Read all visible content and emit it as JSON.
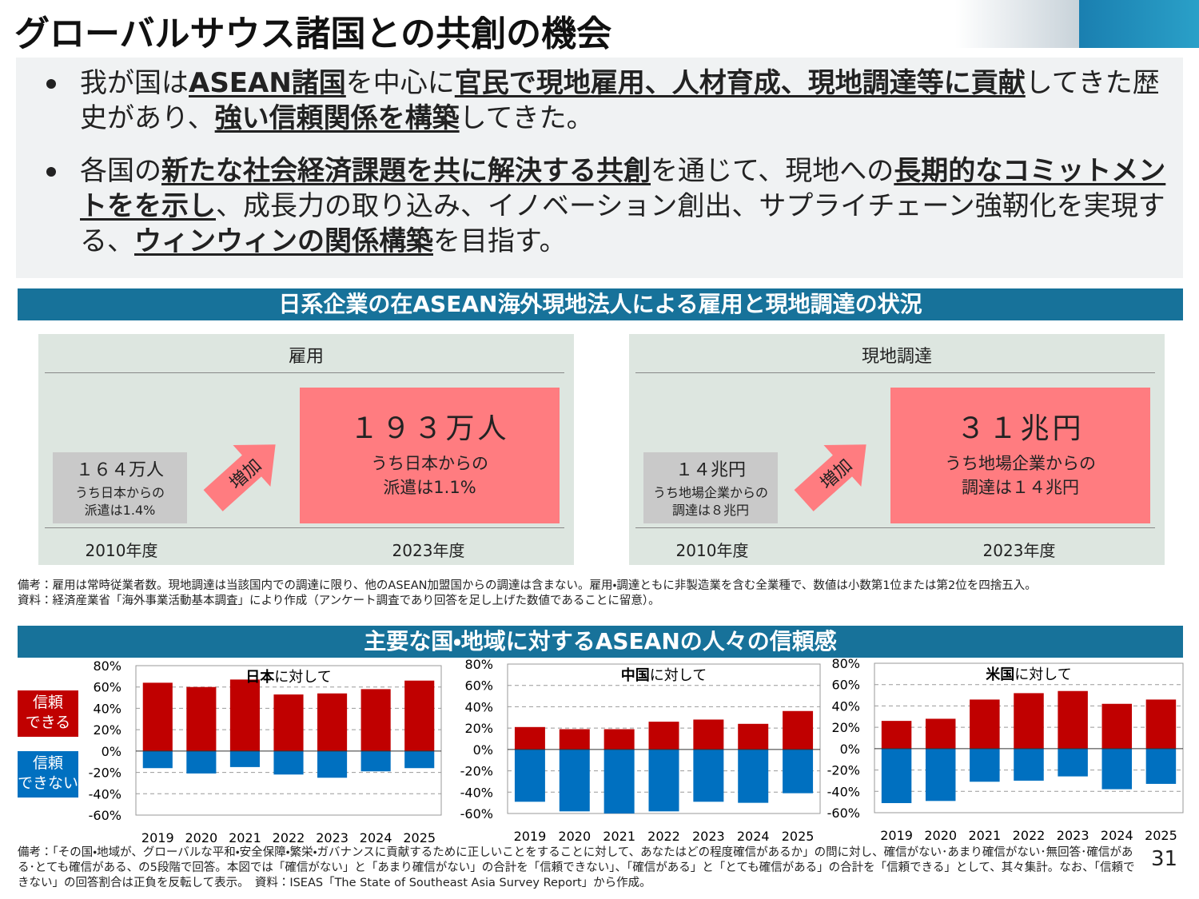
{
  "header": {
    "title": "グローバルサウス諸国との共創の機会"
  },
  "bullets": [
    {
      "segments": [
        {
          "text": "我が国は"
        },
        {
          "text": "ASEAN諸国",
          "em": true
        },
        {
          "text": "を中心に"
        },
        {
          "text": "官民で現地雇用、人材育成、現地調達等に貢献",
          "em": true
        },
        {
          "text": "してきた歴史があり、"
        },
        {
          "text": "強い信頼関係を構築",
          "em": true
        },
        {
          "text": "してきた。"
        }
      ]
    },
    {
      "segments": [
        {
          "text": "各国の"
        },
        {
          "text": "新たな社会経済課題を共に解決する共創",
          "em": true
        },
        {
          "text": "を通じて、現地への"
        },
        {
          "text": "長期的なコミットメントをを示し",
          "em": true
        },
        {
          "text": "、成長力の取り込み、イノベーション創出、サプライチェーン強靭化を実現する、"
        },
        {
          "text": "ウィンウィンの関係構築",
          "em": true
        },
        {
          "text": "を目指す。"
        }
      ]
    }
  ],
  "section1": {
    "title": "日系企業の在ASEAN海外現地法人による雇用と現地調達の状況"
  },
  "panels": [
    {
      "title": "雇用",
      "arrow": "増加",
      "before": {
        "value": "１６４万人",
        "note": "うち日本からの\n派遣は1.4%",
        "year": "2010年度"
      },
      "after": {
        "value": "１９３万人",
        "note": "うち日本からの\n派遣は1.1%",
        "year": "2023年度"
      }
    },
    {
      "title": "現地調達",
      "arrow": "増加",
      "before": {
        "value": "１４兆円",
        "note": "うち地場企業からの\n調達は８兆円",
        "year": "2010年度"
      },
      "after": {
        "value": "３１兆円",
        "note": "うち地場企業からの\n調達は１４兆円",
        "year": "2023年度"
      }
    }
  ],
  "notes1": [
    "備考：雇用は常時従業者数。現地調達は当該国内での調達に限り、他のASEAN加盟国からの調達は含まない。雇用・調達ともに非製造業を含む全業種で、数値は小数第1位または第2位を四捨五入。",
    "資料：経済産業省「海外事業活動基本調査」により作成（アンケート調査であり回答を足し上げた数値であることに留意）。"
  ],
  "section2": {
    "title": "主要な国・地域に対するASEANの人々の信頼感"
  },
  "chart_data": [
    {
      "type": "bar",
      "title_parts": [
        "日本",
        "に対して"
      ],
      "categories": [
        "2019",
        "2020",
        "2021",
        "2022",
        "2023",
        "2024",
        "2025"
      ],
      "series": [
        {
          "name": "信頼\nできる",
          "color": "#c00000",
          "values": [
            64,
            60,
            67,
            53,
            54,
            58,
            66
          ]
        },
        {
          "name": "信頼\nできない",
          "color": "#0070c0",
          "values": [
            -16,
            -21,
            -15,
            -22,
            -25,
            -19,
            -16
          ]
        }
      ],
      "ylim": [
        -60,
        80
      ],
      "yticks": [
        {
          "value": -60,
          "label": "-60%"
        },
        {
          "value": -40,
          "label": "-40%"
        },
        {
          "value": -20,
          "label": "-20%"
        },
        {
          "value": 0,
          "label": "0%"
        },
        {
          "value": 20,
          "label": "20%"
        },
        {
          "value": 40,
          "label": "40%"
        },
        {
          "value": 60,
          "label": "60%"
        },
        {
          "value": 80,
          "label": "80%"
        }
      ],
      "grid": true
    },
    {
      "type": "bar",
      "title_parts": [
        "中国",
        "に対して"
      ],
      "categories": [
        "2019",
        "2020",
        "2021",
        "2022",
        "2023",
        "2024",
        "2025"
      ],
      "series": [
        {
          "color": "#c00000",
          "values": [
            21,
            19,
            19,
            26,
            28,
            24,
            36
          ]
        },
        {
          "color": "#0070c0",
          "values": [
            -49,
            -58,
            -60,
            -58,
            -49,
            -50,
            -41
          ]
        }
      ],
      "ylim": [
        -60,
        80
      ],
      "yticks": [
        {
          "value": -60,
          "label": "-60%"
        },
        {
          "value": -40,
          "label": "-40%"
        },
        {
          "value": -20,
          "label": "-20%"
        },
        {
          "value": 0,
          "label": "0%"
        },
        {
          "value": 20,
          "label": "20%"
        },
        {
          "value": 40,
          "label": "40%"
        },
        {
          "value": 60,
          "label": "60%"
        },
        {
          "value": 80,
          "label": "80%"
        }
      ],
      "grid": true
    },
    {
      "type": "bar",
      "title_parts": [
        "米国",
        "に対して"
      ],
      "categories": [
        "2019",
        "2020",
        "2021",
        "2022",
        "2023",
        "2024",
        "2025"
      ],
      "series": [
        {
          "color": "#c00000",
          "values": [
            26,
            28,
            46,
            52,
            54,
            42,
            46
          ]
        },
        {
          "color": "#0070c0",
          "values": [
            -51,
            -49,
            -31,
            -30,
            -26,
            -38,
            -33
          ]
        }
      ],
      "ylim": [
        -60,
        80
      ],
      "yticks": [
        {
          "value": -60,
          "label": "-60%"
        },
        {
          "value": -40,
          "label": "-40%"
        },
        {
          "value": -20,
          "label": "-20%"
        },
        {
          "value": 0,
          "label": "0%"
        },
        {
          "value": 20,
          "label": "20%"
        },
        {
          "value": 40,
          "label": "40%"
        },
        {
          "value": 60,
          "label": "60%"
        },
        {
          "value": 80,
          "label": "80%"
        }
      ],
      "grid": true
    }
  ],
  "notes2": "備考：「その国・地域が、グローバルな平和・安全保障・繁栄・ガバナンスに貢献するために正しいことをすることに対して、あなたはどの程度確信があるか」の問に対し、確信がない･あまり確信がない･無回答･確信がある･とても確信がある、の5段階で回答。本図では「確信がない」と「あまり確信がない」の合計を「信頼できない」、「確信がある」と「とても確信がある」の合計を「信頼できる」として、其々集計。なお、「信頼できない」の回答割合は正負を反転して表示。　資料：ISEAS「The State of Southeast Asia Survey Report」から作成。",
  "page_number": "31"
}
